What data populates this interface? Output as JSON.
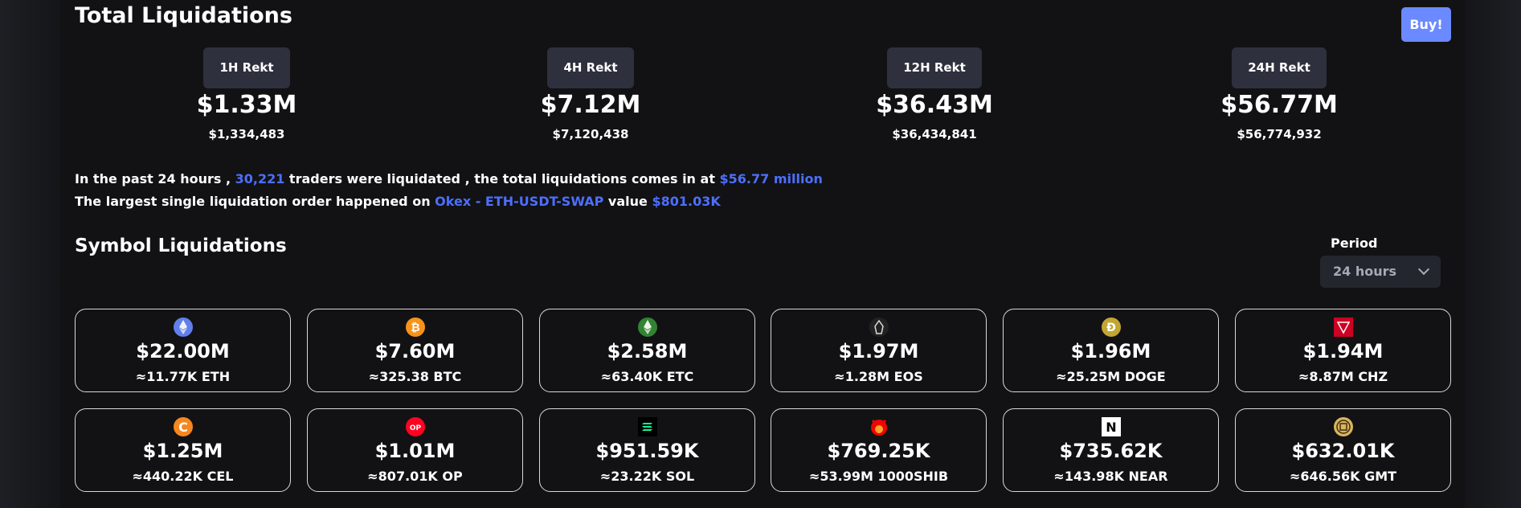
{
  "header": {
    "title": "Total Liquidations",
    "buy_label": "Buy!"
  },
  "rekt": [
    {
      "label": "1H Rekt",
      "short": "$1.33M",
      "full": "$1,334,483"
    },
    {
      "label": "4H Rekt",
      "short": "$7.12M",
      "full": "$7,120,438"
    },
    {
      "label": "12H Rekt",
      "short": "$36.43M",
      "full": "$36,434,841"
    },
    {
      "label": "24H Rekt",
      "short": "$56.77M",
      "full": "$56,774,932"
    }
  ],
  "summary": {
    "line1_a": "In the past 24 hours , ",
    "traders": "30,221",
    "line1_b": " traders were liquidated , the total liquidations comes in at ",
    "total": "$56.77 million",
    "line2_a": "The largest single liquidation order happened on ",
    "order": "Okex - ETH-USDT-SWAP",
    "line2_b": " value ",
    "order_value": "$801.03K"
  },
  "symbols": {
    "title": "Symbol Liquidations",
    "period_label": "Period",
    "period_value": "24 hours",
    "cards": [
      {
        "value": "$22.00M",
        "amount": "≈11.77K ETH",
        "icon": "eth-icon"
      },
      {
        "value": "$7.60M",
        "amount": "≈325.38 BTC",
        "icon": "btc-icon"
      },
      {
        "value": "$2.58M",
        "amount": "≈63.40K ETC",
        "icon": "etc-icon"
      },
      {
        "value": "$1.97M",
        "amount": "≈1.28M EOS",
        "icon": "eos-icon"
      },
      {
        "value": "$1.96M",
        "amount": "≈25.25M DOGE",
        "icon": "doge-icon"
      },
      {
        "value": "$1.94M",
        "amount": "≈8.87M CHZ",
        "icon": "chz-icon"
      },
      {
        "value": "$1.25M",
        "amount": "≈440.22K CEL",
        "icon": "cel-icon"
      },
      {
        "value": "$1.01M",
        "amount": "≈807.01K OP",
        "icon": "op-icon"
      },
      {
        "value": "$951.59K",
        "amount": "≈23.22K SOL",
        "icon": "sol-icon"
      },
      {
        "value": "$769.25K",
        "amount": "≈53.99M 1000SHIB",
        "icon": "shib-icon"
      },
      {
        "value": "$735.62K",
        "amount": "≈143.98K NEAR",
        "icon": "near-icon"
      },
      {
        "value": "$632.01K",
        "amount": "≈646.56K GMT",
        "icon": "gmt-icon"
      }
    ],
    "icon_text": {
      "doge": "Ð",
      "op": "OP",
      "near": "N",
      "cel": "C",
      "btc": "₿"
    }
  },
  "colors": {
    "accent": "#4c6fff",
    "buy": "#6b8aff",
    "tag_bg": "#2e303d"
  }
}
